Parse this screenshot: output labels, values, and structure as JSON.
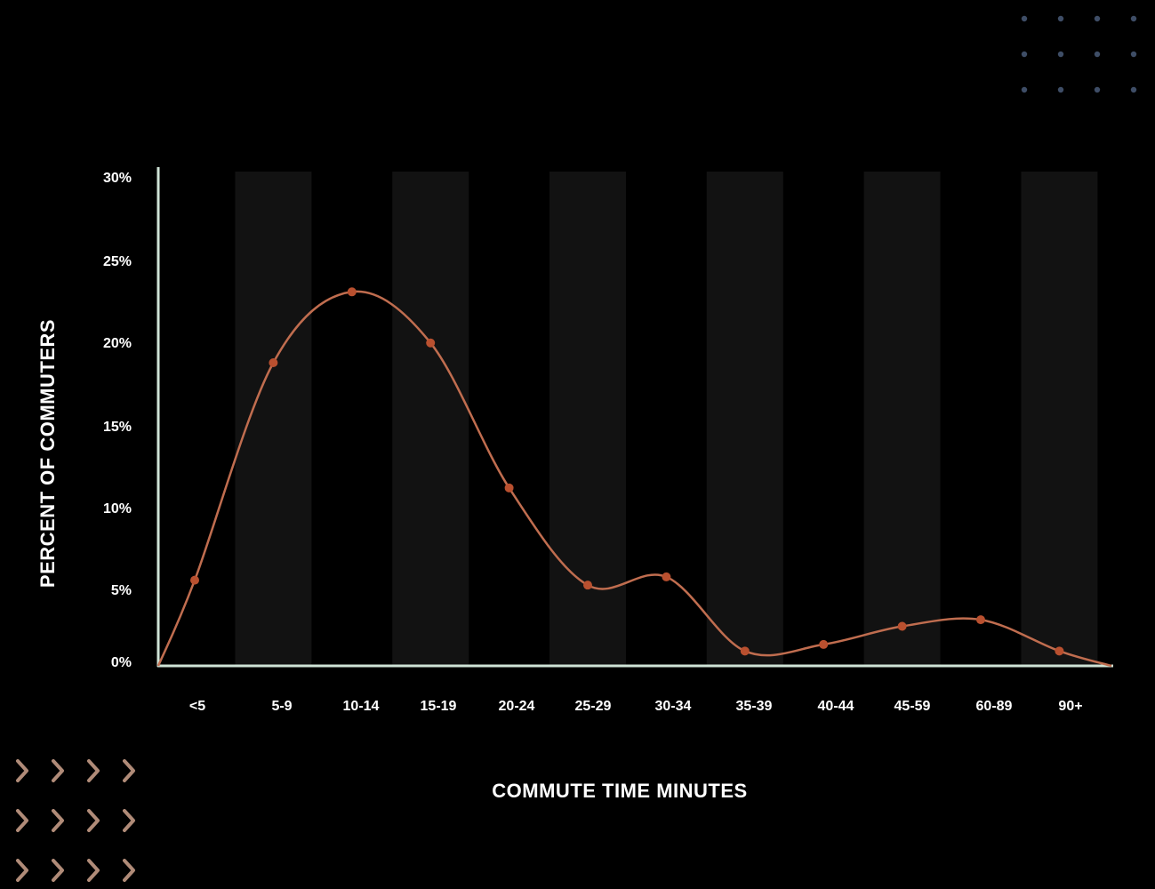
{
  "chart_data": {
    "type": "line",
    "xlabel": "COMMUTE TIME MINUTES",
    "ylabel": "PERCENT OF COMMUTERS",
    "categories": [
      "<5",
      "5-9",
      "10-14",
      "15-19",
      "20-24",
      "25-29",
      "30-34",
      "35-39",
      "40-44",
      "45-59",
      "60-89",
      "90+"
    ],
    "series": [
      {
        "values": [
          5.2,
          18.4,
          22.7,
          19.6,
          10.8,
          4.9,
          5.4,
          0.9,
          1.3,
          2.4,
          2.8,
          0.9
        ]
      }
    ],
    "y_ticks": [
      "0%",
      "5%",
      "10%",
      "15%",
      "20%",
      "25%",
      "30%"
    ],
    "ylim": [
      0,
      30
    ],
    "grid": false,
    "colors": {
      "background": "#000000",
      "band": "#121212",
      "line": "#c06d4f",
      "marker": "#b9502f",
      "axis": "#cfe3d6",
      "dots": "#3e4d66",
      "chevrons": "#b08b78"
    }
  }
}
